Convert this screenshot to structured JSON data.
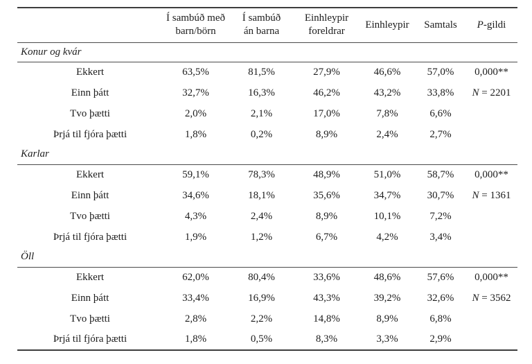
{
  "table": {
    "rule_color": "#3d3d3d",
    "text_color": "#1c1c1c",
    "header": {
      "row_label_column": "",
      "columns": [
        {
          "label": "Í sambúð með\nbarn/börn",
          "italic_first": false
        },
        {
          "label": "Í sambúð\nán barna",
          "italic_first": false
        },
        {
          "label": "Einhleypir\nforeldrar",
          "italic_first": false
        },
        {
          "label": "Einhleypir",
          "italic_first": false
        },
        {
          "label": "Samtals",
          "italic_first": false
        },
        {
          "label": "P-gildi",
          "italic_first": true
        }
      ]
    },
    "sections": [
      {
        "title": "Konur og kvár",
        "rows": [
          {
            "label": "Ekkert",
            "values": [
              "63,5%",
              "81,5%",
              "27,9%",
              "46,6%",
              "57,0%"
            ],
            "stat": "0,000**"
          },
          {
            "label": "Einn þátt",
            "values": [
              "32,7%",
              "16,3%",
              "46,2%",
              "43,2%",
              "33,8%"
            ],
            "stat": "N = 2201"
          },
          {
            "label": "Tvo þætti",
            "values": [
              "2,0%",
              "2,1%",
              "17,0%",
              "7,8%",
              "6,6%"
            ],
            "stat": ""
          },
          {
            "label": "Þrjá til fjóra þætti",
            "values": [
              "1,8%",
              "0,2%",
              "8,9%",
              "2,4%",
              "2,7%"
            ],
            "stat": ""
          }
        ]
      },
      {
        "title": "Karlar",
        "rows": [
          {
            "label": "Ekkert",
            "values": [
              "59,1%",
              "78,3%",
              "48,9%",
              "51,0%",
              "58,7%"
            ],
            "stat": "0,000**"
          },
          {
            "label": "Einn þátt",
            "values": [
              "34,6%",
              "18,1%",
              "35,6%",
              "34,7%",
              "30,7%"
            ],
            "stat": "N = 1361"
          },
          {
            "label": "Tvo þætti",
            "values": [
              "4,3%",
              "2,4%",
              "8,9%",
              "10,1%",
              "7,2%"
            ],
            "stat": ""
          },
          {
            "label": "Þrjá til fjóra þætti",
            "values": [
              "1,9%",
              "1,2%",
              "6,7%",
              "4,2%",
              "3,4%"
            ],
            "stat": ""
          }
        ]
      },
      {
        "title": "Öll",
        "rows": [
          {
            "label": "Ekkert",
            "values": [
              "62,0%",
              "80,4%",
              "33,6%",
              "48,6%",
              "57,6%"
            ],
            "stat": "0,000**"
          },
          {
            "label": "Einn þátt",
            "values": [
              "33,4%",
              "16,9%",
              "43,3%",
              "39,2%",
              "32,6%"
            ],
            "stat": "N = 3562"
          },
          {
            "label": "Tvo þætti",
            "values": [
              "2,8%",
              "2,2%",
              "14,8%",
              "8,9%",
              "6,8%"
            ],
            "stat": ""
          },
          {
            "label": "Þrjá til fjóra þætti",
            "values": [
              "1,8%",
              "0,5%",
              "8,3%",
              "3,3%",
              "2,9%"
            ],
            "stat": ""
          }
        ]
      }
    ]
  }
}
